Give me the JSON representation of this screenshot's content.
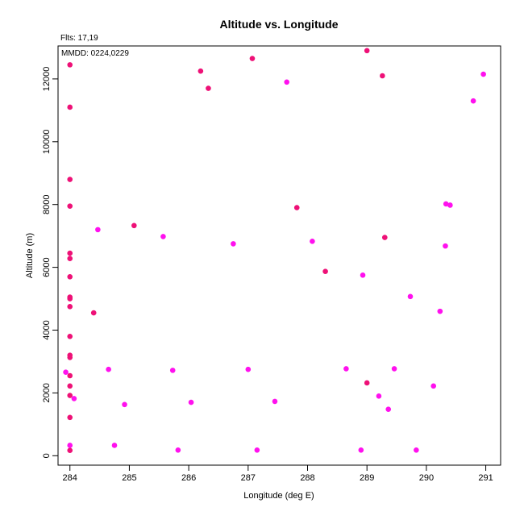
{
  "chart_data": {
    "type": "scatter",
    "title": "Altitude vs. Longitude",
    "xlabel": "Longitude (deg E)",
    "ylabel": "Altitude (m)",
    "annotations": [
      "Flts: 17,19",
      "MMDD: 0224,0229"
    ],
    "xlim": [
      283.8,
      291.25
    ],
    "ylim": [
      -300,
      13050
    ],
    "xticks": [
      284,
      285,
      286,
      287,
      288,
      289,
      290,
      291
    ],
    "yticks": [
      0,
      2000,
      4000,
      6000,
      8000,
      10000,
      12000
    ],
    "grid": false,
    "series": [
      {
        "color": "#ee1177",
        "points": [
          [
            284.0,
            12450
          ],
          [
            284.0,
            11100
          ],
          [
            284.0,
            8800
          ],
          [
            284.0,
            7950
          ],
          [
            284.0,
            6450
          ],
          [
            284.0,
            6280
          ],
          [
            284.0,
            5700
          ],
          [
            284.0,
            5050
          ],
          [
            284.0,
            5000
          ],
          [
            284.0,
            4750
          ],
          [
            284.0,
            3800
          ],
          [
            284.0,
            3200
          ],
          [
            284.0,
            3130
          ],
          [
            284.0,
            2550
          ],
          [
            284.0,
            2220
          ],
          [
            284.0,
            1920
          ],
          [
            284.0,
            1220
          ],
          [
            284.0,
            170
          ],
          [
            284.4,
            4550
          ],
          [
            285.08,
            7330
          ],
          [
            286.2,
            12250
          ],
          [
            286.33,
            11700
          ],
          [
            287.07,
            12650
          ],
          [
            287.82,
            7900
          ],
          [
            288.3,
            5870
          ],
          [
            289.0,
            12900
          ],
          [
            289.26,
            12100
          ],
          [
            289.3,
            6950
          ],
          [
            289.0,
            2320
          ]
        ]
      },
      {
        "color": "#ff11ee",
        "points": [
          [
            283.93,
            2660
          ],
          [
            284.0,
            330
          ],
          [
            284.07,
            1820
          ],
          [
            284.47,
            7200
          ],
          [
            284.65,
            2750
          ],
          [
            284.75,
            330
          ],
          [
            284.92,
            1630
          ],
          [
            285.57,
            6980
          ],
          [
            285.73,
            2720
          ],
          [
            285.82,
            180
          ],
          [
            286.04,
            1700
          ],
          [
            286.75,
            6750
          ],
          [
            287.0,
            2750
          ],
          [
            287.15,
            180
          ],
          [
            287.45,
            1730
          ],
          [
            287.65,
            11900
          ],
          [
            288.08,
            6830
          ],
          [
            288.65,
            2770
          ],
          [
            288.9,
            180
          ],
          [
            288.93,
            5750
          ],
          [
            289.2,
            1900
          ],
          [
            289.36,
            1480
          ],
          [
            289.46,
            2770
          ],
          [
            289.73,
            5070
          ],
          [
            289.83,
            180
          ],
          [
            290.12,
            2220
          ],
          [
            290.23,
            4600
          ],
          [
            290.32,
            6680
          ],
          [
            290.33,
            8020
          ],
          [
            290.4,
            7980
          ],
          [
            290.79,
            11300
          ],
          [
            290.96,
            12150
          ]
        ]
      }
    ]
  }
}
